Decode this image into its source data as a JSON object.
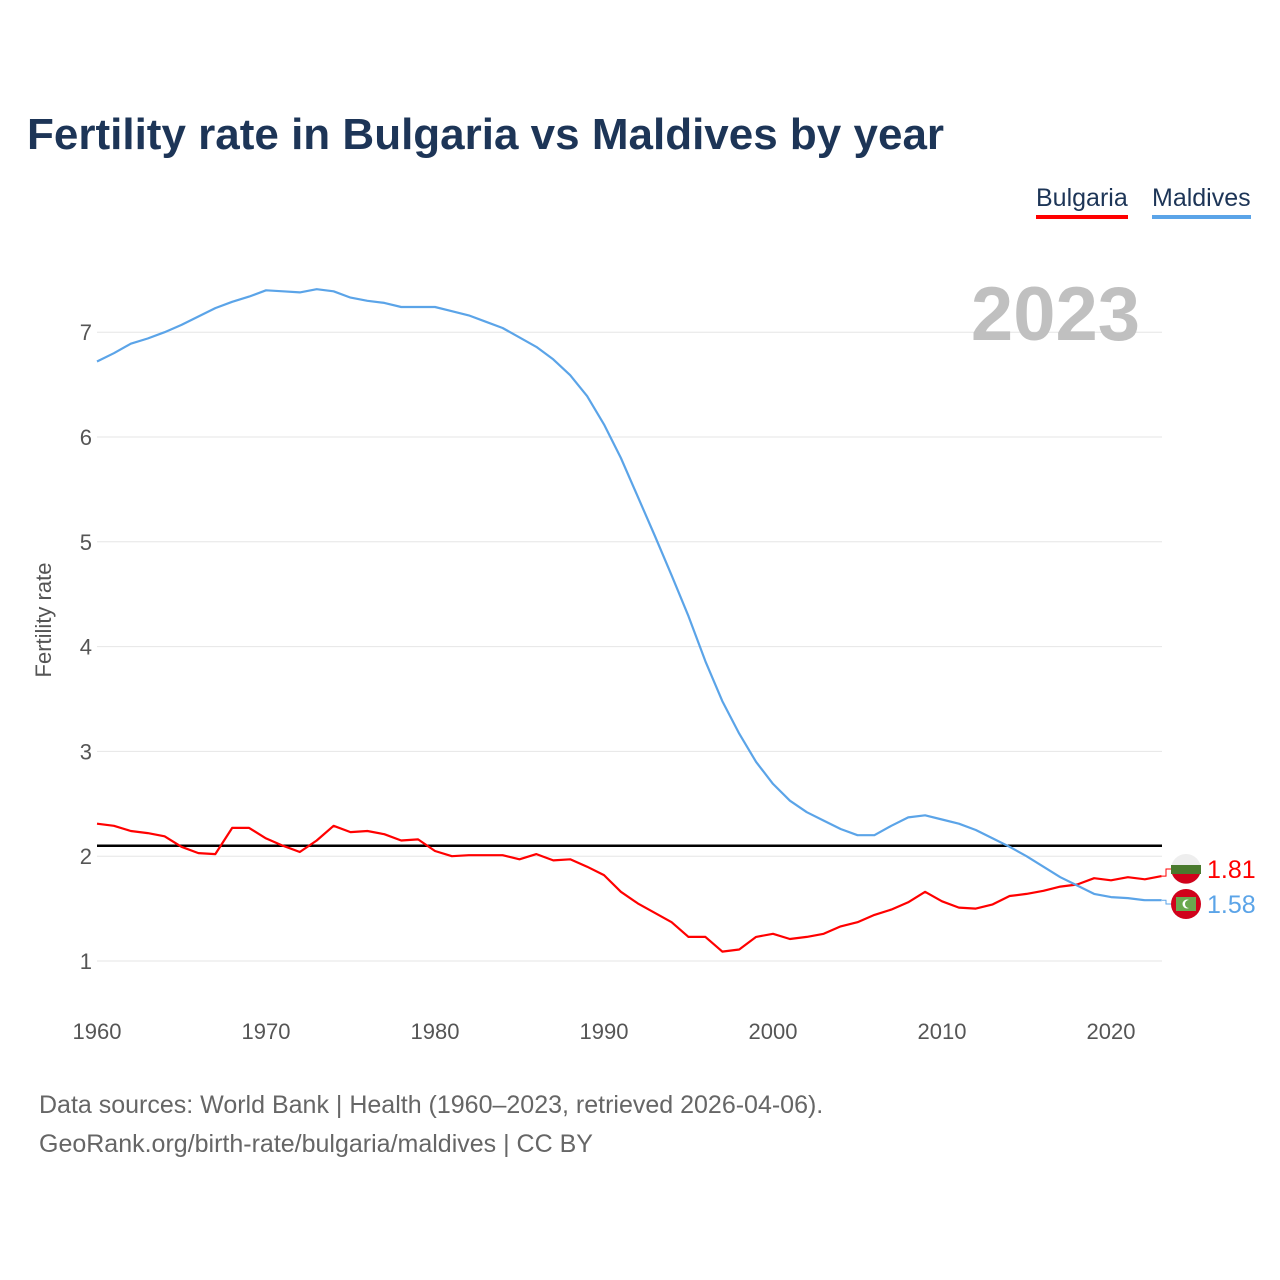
{
  "chart_data": {
    "type": "line",
    "title": "Fertility rate in Bulgaria vs Maldives by year",
    "xlabel": "",
    "ylabel": "Fertility rate",
    "xlim": [
      1960,
      2023
    ],
    "ylim": [
      1,
      7.5
    ],
    "x_ticks": [
      "1960",
      "1970",
      "1980",
      "1990",
      "2000",
      "2010",
      "2020"
    ],
    "y_ticks": [
      "1",
      "2",
      "3",
      "4",
      "5",
      "6",
      "7"
    ],
    "grid": true,
    "legend_position": "top-right",
    "watermark_year": "2023",
    "reference_line": 2.1,
    "x": [
      1960,
      1961,
      1962,
      1963,
      1964,
      1965,
      1966,
      1967,
      1968,
      1969,
      1970,
      1971,
      1972,
      1973,
      1974,
      1975,
      1976,
      1977,
      1978,
      1979,
      1980,
      1981,
      1982,
      1983,
      1984,
      1985,
      1986,
      1987,
      1988,
      1989,
      1990,
      1991,
      1992,
      1993,
      1994,
      1995,
      1996,
      1997,
      1998,
      1999,
      2000,
      2001,
      2002,
      2003,
      2004,
      2005,
      2006,
      2007,
      2008,
      2009,
      2010,
      2011,
      2012,
      2013,
      2014,
      2015,
      2016,
      2017,
      2018,
      2019,
      2020,
      2021,
      2022,
      2023
    ],
    "series": [
      {
        "name": "Bulgaria",
        "color": "#ff0000",
        "end_label": "1.81",
        "values": [
          2.31,
          2.29,
          2.24,
          2.22,
          2.19,
          2.09,
          2.03,
          2.02,
          2.27,
          2.27,
          2.17,
          2.1,
          2.04,
          2.15,
          2.29,
          2.23,
          2.24,
          2.21,
          2.15,
          2.16,
          2.05,
          2.0,
          2.01,
          2.01,
          2.01,
          1.97,
          2.02,
          1.96,
          1.97,
          1.9,
          1.82,
          1.66,
          1.55,
          1.46,
          1.37,
          1.23,
          1.23,
          1.09,
          1.11,
          1.23,
          1.26,
          1.21,
          1.23,
          1.26,
          1.33,
          1.37,
          1.44,
          1.49,
          1.56,
          1.66,
          1.57,
          1.51,
          1.5,
          1.54,
          1.62,
          1.64,
          1.67,
          1.71,
          1.73,
          1.79,
          1.77,
          1.8,
          1.78,
          1.81
        ]
      },
      {
        "name": "Maldives",
        "color": "#5ba4e8",
        "end_label": "1.58",
        "values": [
          6.72,
          6.8,
          6.89,
          6.94,
          7.0,
          7.07,
          7.15,
          7.23,
          7.29,
          7.34,
          7.4,
          7.39,
          7.38,
          7.41,
          7.39,
          7.33,
          7.3,
          7.28,
          7.24,
          7.24,
          7.24,
          7.2,
          7.16,
          7.1,
          7.04,
          6.95,
          6.86,
          6.74,
          6.59,
          6.39,
          6.12,
          5.8,
          5.43,
          5.06,
          4.68,
          4.29,
          3.86,
          3.48,
          3.17,
          2.9,
          2.69,
          2.53,
          2.42,
          2.34,
          2.26,
          2.2,
          2.2,
          2.29,
          2.37,
          2.39,
          2.35,
          2.31,
          2.25,
          2.17,
          2.09,
          2.0,
          1.9,
          1.8,
          1.72,
          1.64,
          1.61,
          1.6,
          1.58,
          1.58
        ]
      }
    ]
  },
  "footer": {
    "line1": "Data sources: World Bank | Health (1960–2023, retrieved 2026-04-06).",
    "line2": "GeoRank.org/birth-rate/bulgaria/maldives | CC BY"
  }
}
